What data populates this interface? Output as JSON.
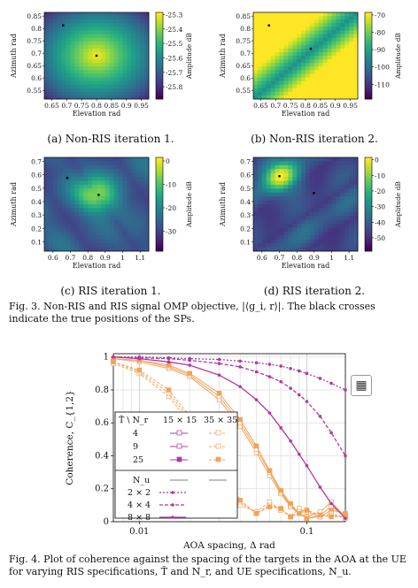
{
  "heatmaps": [
    {
      "id": "a",
      "caption": "(a) Non-RIS iteration 1.",
      "xlabel": "Elevation rad",
      "ylabel": "Azimuth rad",
      "xticks": [
        "0.65",
        "0.7",
        "0.75",
        "0.8",
        "0.85",
        "0.9",
        "0.95"
      ],
      "yticks": [
        "0.85",
        "0.8",
        "0.75",
        "0.7",
        "0.65",
        "0.6",
        "0.55"
      ],
      "cbar_label": "Amplitude dB",
      "cbar_ticks": [
        "-25.3",
        "-25.4",
        "-25.5",
        "-25.6",
        "-25.7",
        "-25.8"
      ],
      "palette": "yellow-peak-center"
    },
    {
      "id": "b",
      "caption": "(b) Non-RIS iteration 2.",
      "xlabel": "Elevation rad",
      "ylabel": "Azimuth rad",
      "xticks": [
        "0.65",
        "0.7",
        "0.75",
        "0.8",
        "0.85",
        "0.9",
        "0.95"
      ],
      "yticks": [
        "0.85",
        "0.8",
        "0.75",
        "0.7",
        "0.65",
        "0.6",
        "0.55"
      ],
      "cbar_label": "Amplitude dB",
      "cbar_ticks": [
        "-70",
        "-80",
        "-90",
        "-100",
        "-110"
      ],
      "palette": "diagonal-valley"
    },
    {
      "id": "c",
      "caption": "(c) RIS iteration 1.",
      "xlabel": "Elevation rad",
      "ylabel": "Azimuth rad",
      "xticks": [
        "0.6",
        "0.7",
        "0.8",
        "0.9",
        "1",
        "1.1"
      ],
      "yticks": [
        "0.7",
        "0.6",
        "0.5",
        "0.4",
        "0.3",
        "0.2",
        "0.1"
      ],
      "cbar_label": "Amplitude dB",
      "cbar_ticks": [
        "0",
        "-10",
        "-20",
        "-30"
      ],
      "palette": "ris-1"
    },
    {
      "id": "d",
      "caption": "(d) RIS iteration 2.",
      "xlabel": "Elevation rad",
      "ylabel": "Azimuth rad",
      "xticks": [
        "0.6",
        "0.7",
        "0.8",
        "0.9",
        "1",
        "1.1"
      ],
      "yticks": [
        "0.7",
        "0.6",
        "0.5",
        "0.4",
        "0.3",
        "0.2",
        "0.1"
      ],
      "cbar_label": "Amplitude dB",
      "cbar_ticks": [
        "0",
        "-10",
        "-20",
        "-30",
        "-40",
        "-50"
      ],
      "palette": "ris-2"
    }
  ],
  "fig3_caption": "Fig. 3.  Non-RIS and RIS signal OMP objective, |⟨g_i, r⟩|. The black crosses indicate the true positions of the SPs.",
  "fig4_caption": "Fig. 4.  Plot of coherence against the spacing of the targets in the AOA at the UE for varying RIS specifications, T̃ and N_r, and UE specifications, N_u.",
  "chart_data": {
    "type": "line",
    "xlabel": "AOA spacing, Δ rad",
    "ylabel": "Coherence, C_{1,2}",
    "xscale": "log",
    "xlim": [
      0.007,
      0.17
    ],
    "ylim": [
      0,
      1.02
    ],
    "xticks": [
      "0.01",
      "0.1"
    ],
    "yticks": [
      "0",
      "0.2",
      "0.4",
      "0.6",
      "0.8",
      "1"
    ],
    "grid": true,
    "legend": {
      "placement": "bottom-left",
      "header": [
        "T̃ \\ N_r",
        "15 × 15",
        "35 × 35"
      ],
      "ris_rows": [
        "4",
        "9",
        "25"
      ],
      "ue_header": "N_u",
      "ue_rows": [
        "2 × 2",
        "4 × 4",
        "8 × 8"
      ]
    },
    "colors": {
      "ris": "#f4a259",
      "ue": "#b03aa3"
    },
    "x": [
      0.007,
      0.01,
      0.015,
      0.02,
      0.03,
      0.04,
      0.05,
      0.06,
      0.07,
      0.08,
      0.09,
      0.1,
      0.12,
      0.14,
      0.17
    ],
    "series": [
      {
        "group": "ris",
        "style": "15x15, T=4",
        "values": [
          0.99,
          0.97,
          0.93,
          0.88,
          0.74,
          0.58,
          0.42,
          0.28,
          0.17,
          0.09,
          0.05,
          0.03,
          0.06,
          0.12,
          0.03
        ]
      },
      {
        "group": "ris",
        "style": "15x15, T=9",
        "values": [
          0.99,
          0.98,
          0.94,
          0.89,
          0.76,
          0.6,
          0.44,
          0.3,
          0.18,
          0.1,
          0.05,
          0.02,
          0.04,
          0.09,
          0.04
        ]
      },
      {
        "group": "ris",
        "style": "15x15, T=25",
        "values": [
          0.99,
          0.98,
          0.95,
          0.9,
          0.78,
          0.62,
          0.46,
          0.31,
          0.19,
          0.11,
          0.05,
          0.02,
          0.03,
          0.07,
          0.05
        ]
      },
      {
        "group": "ris",
        "style": "35x35, T=4",
        "values": [
          0.96,
          0.9,
          0.76,
          0.6,
          0.3,
          0.1,
          0.06,
          0.12,
          0.07,
          0.03,
          0.08,
          0.06,
          0.03,
          0.05,
          0.02
        ]
      },
      {
        "group": "ris",
        "style": "35x35, T=9",
        "values": [
          0.97,
          0.91,
          0.78,
          0.62,
          0.32,
          0.12,
          0.05,
          0.1,
          0.08,
          0.03,
          0.06,
          0.07,
          0.03,
          0.04,
          0.03
        ]
      },
      {
        "group": "ris",
        "style": "35x35, T=25",
        "values": [
          0.97,
          0.92,
          0.8,
          0.64,
          0.34,
          0.13,
          0.05,
          0.09,
          0.08,
          0.03,
          0.05,
          0.07,
          0.04,
          0.03,
          0.03
        ]
      },
      {
        "group": "ue",
        "style": "Nu=2x2",
        "values": [
          1.0,
          1.0,
          0.995,
          0.99,
          0.985,
          0.975,
          0.965,
          0.955,
          0.945,
          0.93,
          0.915,
          0.9,
          0.87,
          0.84,
          0.8
        ]
      },
      {
        "group": "ue",
        "style": "Nu=4x4",
        "values": [
          1.0,
          0.995,
          0.99,
          0.98,
          0.96,
          0.94,
          0.91,
          0.88,
          0.85,
          0.81,
          0.77,
          0.73,
          0.64,
          0.54,
          0.4
        ]
      },
      {
        "group": "ue",
        "style": "Nu=8x8",
        "values": [
          1.0,
          0.99,
          0.97,
          0.95,
          0.89,
          0.82,
          0.74,
          0.66,
          0.57,
          0.49,
          0.41,
          0.34,
          0.21,
          0.11,
          0.02
        ]
      }
    ]
  },
  "ui": {
    "toolbar_icon": "table-view-icon",
    "toolbar_glyph": "▦"
  }
}
